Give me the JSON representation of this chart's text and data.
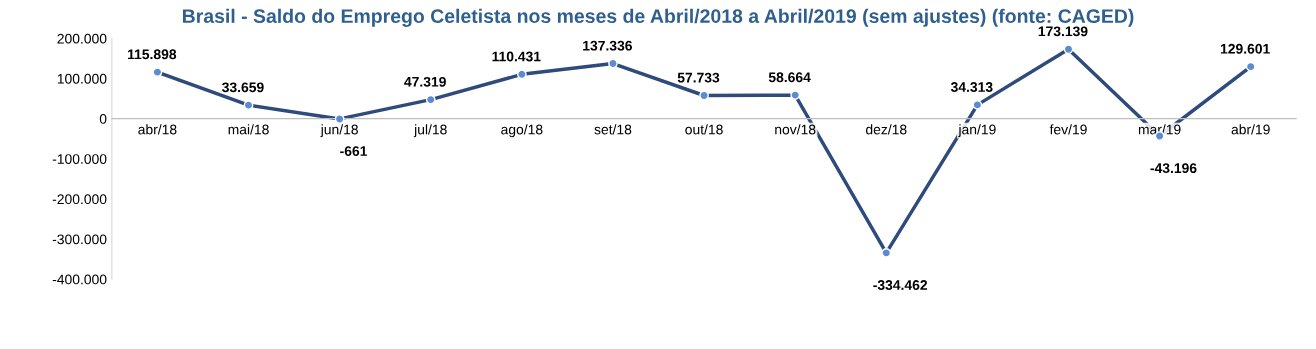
{
  "chart_data": {
    "type": "line",
    "title": "Brasil - Saldo do Emprego Celetista nos meses de Abril/2018 a Abril/2019 (sem ajustes) (fonte: CAGED)",
    "categories": [
      "abr/18",
      "mai/18",
      "jun/18",
      "jul/18",
      "ago/18",
      "set/18",
      "out/18",
      "nov/18",
      "dez/18",
      "jan/19",
      "fev/19",
      "mar/19",
      "abr/19"
    ],
    "series": [
      {
        "color": "#2f4b7c",
        "values": [
          115898,
          33659,
          -661,
          47319,
          110431,
          137336,
          57733,
          58664,
          -334462,
          34313,
          173139,
          -43196,
          129601
        ],
        "value_labels": [
          "115.898",
          "33.659",
          "-661",
          "47.319",
          "110.431",
          "137.336",
          "57.733",
          "58.664",
          "-334.462",
          "34.313",
          "173.139",
          "-43.196",
          "129.601"
        ]
      }
    ],
    "ylim": [
      -400000,
      200000
    ],
    "yticks": [
      {
        "value": -400000,
        "label": "-400.000"
      },
      {
        "value": -300000,
        "label": "-300.000"
      },
      {
        "value": -200000,
        "label": "-200.000"
      },
      {
        "value": -100000,
        "label": "-100.000"
      },
      0,
      {
        "value": 100000,
        "label": "100.000"
      },
      {
        "value": 200000,
        "label": "200.000"
      }
    ],
    "marker": "circle",
    "line_style": "solid",
    "grid": false
  }
}
